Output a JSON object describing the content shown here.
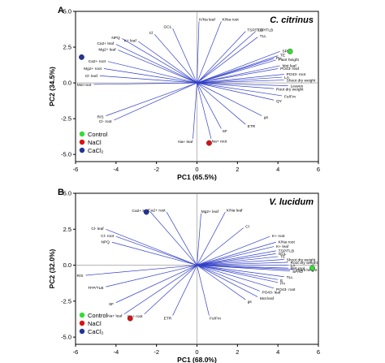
{
  "chart_data": [
    {
      "type": "scatter",
      "panel_label": "A",
      "species": "C. citrinus",
      "xlabel": "PC1 (65.5%)",
      "ylabel": "PC2 (34.5%)",
      "xlim": [
        -6,
        6
      ],
      "ylim": [
        -5.5,
        5
      ],
      "xticks": [
        "-6",
        "-4",
        "-2",
        "0",
        "2",
        "4",
        "6"
      ],
      "yticks": [
        "5.0",
        "2.5",
        "0.0",
        "-2.5",
        "-5.0"
      ],
      "grid": false,
      "legend_position": "bottom-left",
      "legend": [
        {
          "name": "Control",
          "color": "#33dd33"
        },
        {
          "name": "NaCl",
          "color": "#dd1111"
        },
        {
          "name": "CaCl₂",
          "color": "#223399"
        }
      ],
      "vectors": [
        {
          "label": "GCL",
          "x": -1.2,
          "y": 3.8
        },
        {
          "label": "K/Na leaf",
          "x": 0.1,
          "y": 4.3
        },
        {
          "label": "K/Na root",
          "x": 1.2,
          "y": 4.3
        },
        {
          "label": "Cl",
          "x": -2.1,
          "y": 3.4
        },
        {
          "label": "NPQ",
          "x": -3.7,
          "y": 3.1
        },
        {
          "label": "K+ leaf",
          "x": -2.9,
          "y": 2.9
        },
        {
          "label": "Ca2+ leaf",
          "x": -4.0,
          "y": 2.7
        },
        {
          "label": "Mg2+ leaf",
          "x": -3.9,
          "y": 2.3
        },
        {
          "label": "Ca2+ root",
          "x": -4.4,
          "y": 1.5
        },
        {
          "label": "Mg2+ root",
          "x": -4.6,
          "y": 1.0
        },
        {
          "label": "Cl- leaf",
          "x": -4.8,
          "y": 0.5
        },
        {
          "label": "Mot root",
          "x": -5.1,
          "y": -0.1
        },
        {
          "label": "TSP/TLB",
          "x": 2.4,
          "y": 3.6
        },
        {
          "label": "TFP/TLB",
          "x": 2.9,
          "y": 3.6
        },
        {
          "label": "TLL",
          "x": 3.0,
          "y": 3.2
        },
        {
          "label": "SPAD",
          "x": 4.1,
          "y": 2.2
        },
        {
          "label": "TE",
          "x": 4.0,
          "y": 1.9
        },
        {
          "label": "Pn",
          "x": 3.8,
          "y": 1.7
        },
        {
          "label": "Plant height",
          "x": 3.9,
          "y": 1.6
        },
        {
          "label": "Mot leaf",
          "x": 4.1,
          "y": 1.2
        },
        {
          "label": "PO43- leaf",
          "x": 4.0,
          "y": 1.0
        },
        {
          "label": "PO43- root",
          "x": 4.3,
          "y": 0.6
        },
        {
          "label": "LA",
          "x": 4.2,
          "y": 0.4
        },
        {
          "label": "Shoot dry weight",
          "x": 4.3,
          "y": 0.2
        },
        {
          "label": "Leaves",
          "x": 4.5,
          "y": -0.2
        },
        {
          "label": "Root dry weight",
          "x": 3.8,
          "y": -0.4
        },
        {
          "label": "QY",
          "x": 3.8,
          "y": -1.2
        },
        {
          "label": "Fe/Fm",
          "x": 4.2,
          "y": -0.9
        },
        {
          "label": "gs",
          "x": 3.2,
          "y": -2.3
        },
        {
          "label": "ETR",
          "x": 2.4,
          "y": -2.9
        },
        {
          "label": "SF",
          "x": 1.2,
          "y": -3.2
        },
        {
          "label": "Na+ leaf",
          "x": -0.2,
          "y": -3.9
        },
        {
          "label": "Na+ root",
          "x": 0.7,
          "y": -3.9
        },
        {
          "label": "R/S",
          "x": -4.5,
          "y": -2.3
        },
        {
          "label": "Cl- root",
          "x": -4.1,
          "y": -2.6
        }
      ],
      "points": [
        {
          "group": "Control",
          "x": 4.6,
          "y": 2.2
        },
        {
          "group": "NaCl",
          "x": 0.6,
          "y": -4.2
        },
        {
          "group": "CaCl₂",
          "x": -5.7,
          "y": 1.8
        }
      ]
    },
    {
      "type": "scatter",
      "panel_label": "B",
      "species": "V. lucidum",
      "xlabel": "PC1 (68.0%)",
      "ylabel": "PC2 (32.0%)",
      "xlim": [
        -6,
        6
      ],
      "ylim": [
        -5.5,
        5
      ],
      "xticks": [
        "-6",
        "-4",
        "-2",
        "0",
        "2",
        "4",
        "6"
      ],
      "yticks": [
        "5.0",
        "2.5",
        "0.0",
        "-2.5",
        "-5.0"
      ],
      "grid": false,
      "legend_position": "bottom-left",
      "legend": [
        {
          "name": "Control",
          "color": "#33dd33"
        },
        {
          "name": "NaCl",
          "color": "#dd1111"
        },
        {
          "name": "CaCl₂",
          "color": "#223399"
        }
      ],
      "vectors": [
        {
          "label": "Ca2+ leaf",
          "x": -2.3,
          "y": 3.7
        },
        {
          "label": "Ca2+ root",
          "x": -1.5,
          "y": 3.7
        },
        {
          "label": "Mg2+ leaf",
          "x": 0.2,
          "y": 3.6
        },
        {
          "label": "K/Na leaf",
          "x": 1.4,
          "y": 3.7
        },
        {
          "label": "Cl",
          "x": 2.3,
          "y": 2.6
        },
        {
          "label": "K+ root",
          "x": 3.6,
          "y": 2.0
        },
        {
          "label": "K/Na root",
          "x": 3.9,
          "y": 1.6
        },
        {
          "label": "K+ leaf",
          "x": 3.8,
          "y": 1.3
        },
        {
          "label": "TSP/TLB",
          "x": 3.9,
          "y": 1.0
        },
        {
          "label": "GCL",
          "x": 3.9,
          "y": 0.8
        },
        {
          "label": "TE",
          "x": 4.0,
          "y": 0.6
        },
        {
          "label": "Shoot dry weight",
          "x": 4.3,
          "y": 0.4
        },
        {
          "label": "Root dry weight",
          "x": 4.5,
          "y": 0.2
        },
        {
          "label": "LA",
          "x": 4.5,
          "y": 0.0
        },
        {
          "label": "Mot root",
          "x": 4.5,
          "y": -0.2
        },
        {
          "label": "SPAD",
          "x": 4.6,
          "y": -0.4
        },
        {
          "label": "Plant height",
          "x": 4.8,
          "y": -0.3
        },
        {
          "label": "TLL",
          "x": 4.3,
          "y": -0.8
        },
        {
          "label": "Pn",
          "x": 4.0,
          "y": -1.2
        },
        {
          "label": "E",
          "x": 4.0,
          "y": -1.0
        },
        {
          "label": "PO43- root",
          "x": 3.8,
          "y": -1.6
        },
        {
          "label": "PO43- leaf",
          "x": 3.1,
          "y": -1.8
        },
        {
          "label": "Mot leaf",
          "x": 3.0,
          "y": -2.2
        },
        {
          "label": "gs",
          "x": 2.4,
          "y": -2.4
        },
        {
          "label": "Fe/Fm",
          "x": 0.6,
          "y": -3.5
        },
        {
          "label": "ETR",
          "x": -1.2,
          "y": -3.5
        },
        {
          "label": "Cl- leaf",
          "x": -4.5,
          "y": 2.5
        },
        {
          "label": "Cl- root",
          "x": -4.0,
          "y": 2.0
        },
        {
          "label": "NPQ",
          "x": -4.2,
          "y": 1.6
        },
        {
          "label": "R/S",
          "x": -5.5,
          "y": -0.7
        },
        {
          "label": "TFP/TLB",
          "x": -4.5,
          "y": -1.5
        },
        {
          "label": "SF",
          "x": -4.0,
          "y": -2.6
        },
        {
          "label": "Na+ leaf",
          "x": -3.6,
          "y": -3.4
        },
        {
          "label": "Na+ root",
          "x": -2.6,
          "y": -3.4
        }
      ],
      "points": [
        {
          "group": "Control",
          "x": 5.7,
          "y": -0.2
        },
        {
          "group": "NaCl",
          "x": -3.3,
          "y": -3.7
        },
        {
          "group": "CaCl₂",
          "x": -2.5,
          "y": 3.7
        }
      ]
    }
  ]
}
